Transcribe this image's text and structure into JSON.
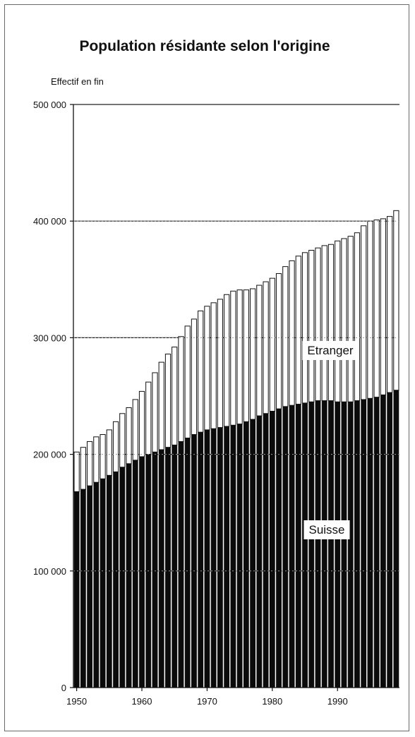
{
  "chart_data": {
    "type": "bar",
    "stacked": true,
    "title": "Population résidante selon l'origine",
    "ylabel": "Effectif en fin",
    "xlabel": "",
    "ylim": [
      0,
      500000
    ],
    "y_ticks": [
      0,
      100000,
      200000,
      300000,
      400000,
      500000
    ],
    "y_tick_labels": [
      "0",
      "100 000",
      "200 000",
      "300 000",
      "400 000",
      "500 000"
    ],
    "x_tick_labels": [
      "1950",
      "1960",
      "1970",
      "1980",
      "1990"
    ],
    "grid": true,
    "categories": [
      1950,
      1951,
      1952,
      1953,
      1954,
      1955,
      1956,
      1957,
      1958,
      1959,
      1960,
      1961,
      1962,
      1963,
      1964,
      1965,
      1966,
      1967,
      1968,
      1969,
      1970,
      1971,
      1972,
      1973,
      1974,
      1975,
      1976,
      1977,
      1978,
      1979,
      1980,
      1981,
      1982,
      1983,
      1984,
      1985,
      1986,
      1987,
      1988,
      1989,
      1990,
      1991,
      1992,
      1993,
      1994,
      1995,
      1996,
      1997,
      1998,
      1999
    ],
    "series": [
      {
        "name": "Suisse",
        "color": "#0b0b0b",
        "values": [
          168000,
          170000,
          173000,
          176000,
          179000,
          182000,
          185000,
          189000,
          192000,
          195000,
          198000,
          200000,
          202000,
          204000,
          206000,
          208000,
          211000,
          214000,
          217000,
          219000,
          221000,
          222000,
          223000,
          224000,
          225000,
          226000,
          228000,
          230000,
          233000,
          235000,
          237000,
          239000,
          241000,
          242000,
          243000,
          244000,
          245000,
          246000,
          246000,
          246000,
          245000,
          245000,
          245000,
          246000,
          247000,
          248000,
          249000,
          251000,
          253000,
          255000
        ]
      },
      {
        "name": "Etranger",
        "color": "#ffffff",
        "values": [
          34000,
          36000,
          38000,
          39000,
          38000,
          39000,
          43000,
          46000,
          48000,
          52000,
          56000,
          62000,
          68000,
          75000,
          80000,
          84000,
          90000,
          96000,
          99000,
          104000,
          106000,
          108000,
          110000,
          113000,
          115000,
          115000,
          113000,
          112000,
          112000,
          113000,
          114000,
          116000,
          120000,
          124000,
          127000,
          129000,
          130000,
          131000,
          133000,
          134000,
          138000,
          140000,
          142000,
          144000,
          149000,
          152000,
          152000,
          151000,
          151000,
          154000
        ]
      }
    ]
  }
}
